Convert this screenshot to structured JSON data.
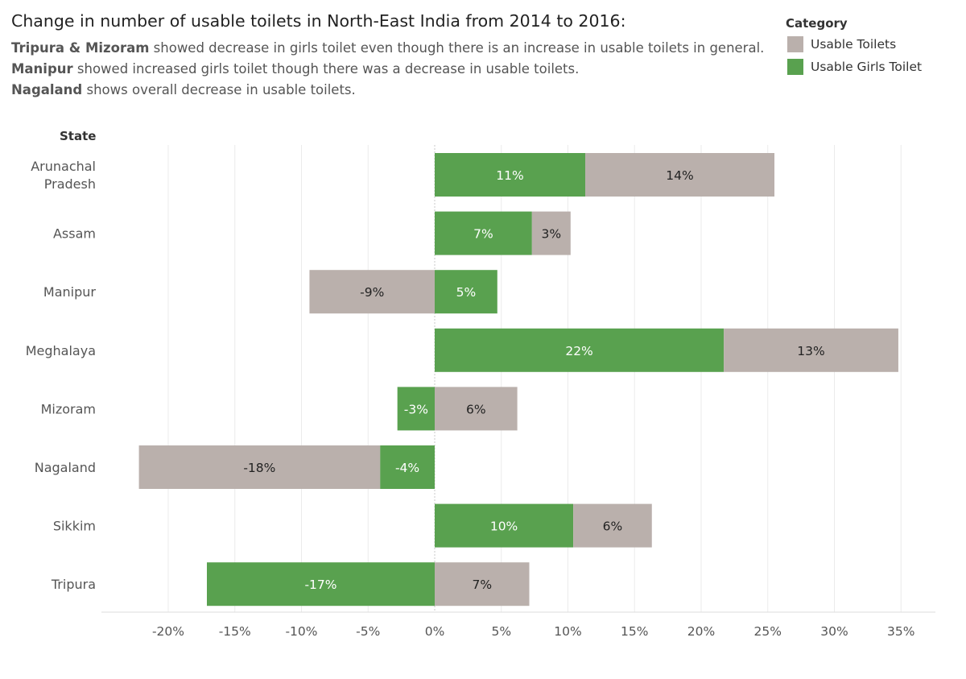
{
  "title": "Change in number of usable toilets in North-East India from 2014 to 2016:",
  "subtitle_lines": [
    {
      "bold": "Tripura & Mizoram",
      "text": " showed decrease in girls toilet even though there is an increase in usable toilets in general."
    },
    {
      "bold": "Manipur",
      "text": " showed increased girls toilet though there was a decrease in usable toilets."
    },
    {
      "bold": "Nagaland",
      "text": " shows overall decrease in usable toilets."
    }
  ],
  "legend": {
    "title": "Category",
    "items": [
      {
        "label": "Usable Toilets",
        "color": "#bab0ac"
      },
      {
        "label": "Usable Girls Toilet",
        "color": "#59a14f"
      }
    ]
  },
  "chart_data": {
    "type": "bar",
    "orientation": "horizontal",
    "stacked": true,
    "row_header": "State",
    "categories": [
      "Arunachal Pradesh",
      "Assam",
      "Manipur",
      "Meghalaya",
      "Mizoram",
      "Nagaland",
      "Sikkim",
      "Tripura"
    ],
    "category_label_lines": [
      [
        "Arunachal",
        "Pradesh"
      ],
      [
        "Assam"
      ],
      [
        "Manipur"
      ],
      [
        "Meghalaya"
      ],
      [
        "Mizoram"
      ],
      [
        "Nagaland"
      ],
      [
        "Sikkim"
      ],
      [
        "Tripura"
      ]
    ],
    "series": [
      {
        "name": "Usable Girls Toilet",
        "color": "#59a14f",
        "label_color": "#ffffff",
        "values": [
          11.3,
          7.3,
          4.7,
          21.7,
          -2.8,
          -4.1,
          10.4,
          -17.1
        ],
        "labels": [
          "11%",
          "7%",
          "5%",
          "22%",
          "-3%",
          "-4%",
          "10%",
          "-17%"
        ]
      },
      {
        "name": "Usable Toilets",
        "color": "#bab0ac",
        "label_color": "#222222",
        "values": [
          14.2,
          2.9,
          -9.4,
          13.1,
          6.2,
          -18.1,
          5.9,
          7.1
        ],
        "labels": [
          "14%",
          "3%",
          "-9%",
          "13%",
          "6%",
          "-18%",
          "6%",
          "7%"
        ]
      }
    ],
    "xlim": [
      -25,
      37.5
    ],
    "xticks": [
      -20,
      -15,
      -10,
      -5,
      0,
      5,
      10,
      15,
      20,
      25,
      30,
      35
    ],
    "xtick_labels": [
      "-20%",
      "-15%",
      "-10%",
      "-5%",
      "0%",
      "5%",
      "10%",
      "15%",
      "20%",
      "25%",
      "30%",
      "35%"
    ],
    "grid": true
  }
}
